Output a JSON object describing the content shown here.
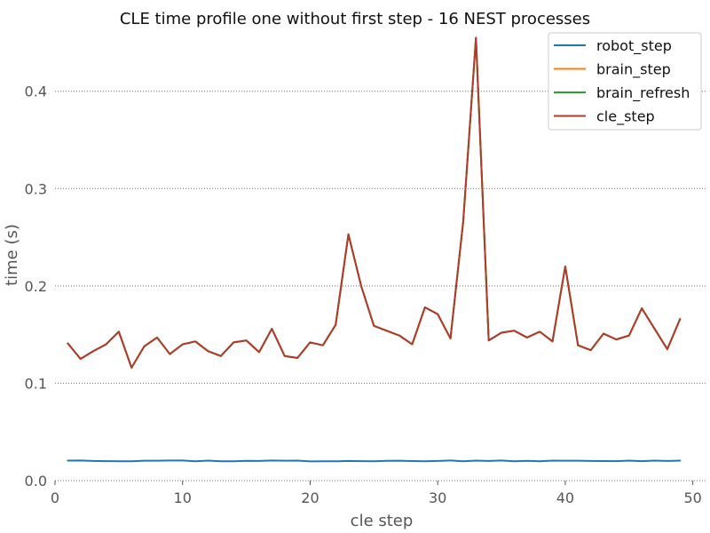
{
  "chart_data": {
    "type": "line",
    "title": "CLE time profile one without first step - 16 NEST processes",
    "xlabel": "cle step",
    "ylabel": "time (s)",
    "xlim": [
      0,
      51
    ],
    "ylim": [
      0,
      0.46
    ],
    "xticks": [
      0,
      10,
      20,
      30,
      40,
      50
    ],
    "xtick_labels": [
      "0",
      "10",
      "20",
      "30",
      "40",
      "50"
    ],
    "yticks": [
      0.0,
      0.1,
      0.2,
      0.3,
      0.4
    ],
    "ytick_labels": [
      "0.0",
      "0.1",
      "0.2",
      "0.3",
      "0.4"
    ],
    "grid": "horizontal dotted",
    "legend_position": "top-right",
    "x": [
      1,
      2,
      3,
      4,
      5,
      6,
      7,
      8,
      9,
      10,
      11,
      12,
      13,
      14,
      15,
      16,
      17,
      18,
      19,
      20,
      21,
      22,
      23,
      24,
      25,
      26,
      27,
      28,
      29,
      30,
      31,
      32,
      33,
      34,
      35,
      36,
      37,
      38,
      39,
      40,
      41,
      42,
      43,
      44,
      45,
      46,
      47,
      48,
      49
    ],
    "series": [
      {
        "name": "robot_step",
        "color": "#1f77b4",
        "values": [
          0.0205,
          0.0207,
          0.0202,
          0.02,
          0.0199,
          0.0199,
          0.0204,
          0.0204,
          0.0206,
          0.0206,
          0.0198,
          0.0205,
          0.0198,
          0.0199,
          0.0203,
          0.0202,
          0.0207,
          0.0204,
          0.0205,
          0.0197,
          0.0199,
          0.0198,
          0.0202,
          0.02,
          0.0199,
          0.0203,
          0.0204,
          0.0201,
          0.0199,
          0.0202,
          0.0207,
          0.0199,
          0.0205,
          0.0202,
          0.0206,
          0.0199,
          0.0203,
          0.0198,
          0.0205,
          0.0204,
          0.0204,
          0.0202,
          0.0201,
          0.02,
          0.0205,
          0.02,
          0.0205,
          0.0202,
          0.0205
        ]
      },
      {
        "name": "brain_step",
        "color": "#ff7f0e",
        "values": [
          0.141,
          0.125,
          0.133,
          0.14,
          0.153,
          0.116,
          0.138,
          0.147,
          0.13,
          0.14,
          0.143,
          0.133,
          0.128,
          0.142,
          0.144,
          0.132,
          0.156,
          0.128,
          0.126,
          0.142,
          0.139,
          0.16,
          0.253,
          0.2,
          0.159,
          0.154,
          0.149,
          0.14,
          0.178,
          0.171,
          0.146,
          0.266,
          0.455,
          0.144,
          0.152,
          0.154,
          0.147,
          0.153,
          0.143,
          0.22,
          0.139,
          0.134,
          0.151,
          0.145,
          0.149,
          0.177,
          0.156,
          0.135,
          0.166
        ]
      },
      {
        "name": "brain_refresh",
        "color": "#2ca02c",
        "values": [
          0.141,
          0.125,
          0.133,
          0.14,
          0.153,
          0.116,
          0.138,
          0.147,
          0.13,
          0.14,
          0.143,
          0.133,
          0.128,
          0.142,
          0.144,
          0.132,
          0.156,
          0.128,
          0.126,
          0.142,
          0.139,
          0.16,
          0.253,
          0.2,
          0.159,
          0.154,
          0.149,
          0.14,
          0.178,
          0.171,
          0.146,
          0.266,
          0.455,
          0.144,
          0.152,
          0.154,
          0.147,
          0.153,
          0.143,
          0.22,
          0.139,
          0.134,
          0.151,
          0.145,
          0.149,
          0.177,
          0.156,
          0.135,
          0.166
        ]
      },
      {
        "name": "cle_step",
        "color": "#b03a2e",
        "values": [
          0.141,
          0.125,
          0.133,
          0.14,
          0.153,
          0.116,
          0.138,
          0.147,
          0.13,
          0.14,
          0.143,
          0.133,
          0.128,
          0.142,
          0.144,
          0.132,
          0.156,
          0.128,
          0.126,
          0.142,
          0.139,
          0.16,
          0.253,
          0.2,
          0.159,
          0.154,
          0.149,
          0.14,
          0.178,
          0.171,
          0.146,
          0.266,
          0.455,
          0.144,
          0.152,
          0.154,
          0.147,
          0.153,
          0.143,
          0.22,
          0.139,
          0.134,
          0.151,
          0.145,
          0.149,
          0.177,
          0.156,
          0.135,
          0.166
        ]
      }
    ]
  }
}
